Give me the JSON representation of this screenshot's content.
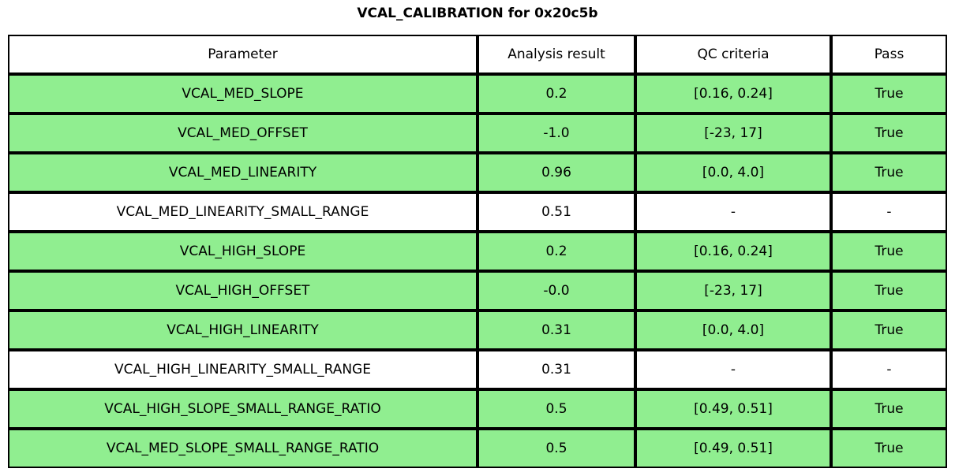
{
  "title": "VCAL_CALIBRATION for 0x20c5b",
  "colors": {
    "pass_row_green": "#90EE90",
    "no_qc_row_white": "#FFFFFF",
    "border_black": "#000000",
    "text_black": "#000000"
  },
  "chart_data": {
    "type": "table",
    "title": "VCAL_CALIBRATION for 0x20c5b",
    "columns": [
      "Parameter",
      "Analysis result",
      "QC criteria",
      "Pass"
    ],
    "rows": [
      {
        "parameter": "VCAL_MED_SLOPE",
        "result": "0.2",
        "qc": "[0.16, 0.24]",
        "pass": "True",
        "highlight": true
      },
      {
        "parameter": "VCAL_MED_OFFSET",
        "result": "-1.0",
        "qc": "[-23, 17]",
        "pass": "True",
        "highlight": true
      },
      {
        "parameter": "VCAL_MED_LINEARITY",
        "result": "0.96",
        "qc": "[0.0, 4.0]",
        "pass": "True",
        "highlight": true
      },
      {
        "parameter": "VCAL_MED_LINEARITY_SMALL_RANGE",
        "result": "0.51",
        "qc": "-",
        "pass": "-",
        "highlight": false
      },
      {
        "parameter": "VCAL_HIGH_SLOPE",
        "result": "0.2",
        "qc": "[0.16, 0.24]",
        "pass": "True",
        "highlight": true
      },
      {
        "parameter": "VCAL_HIGH_OFFSET",
        "result": "-0.0",
        "qc": "[-23, 17]",
        "pass": "True",
        "highlight": true
      },
      {
        "parameter": "VCAL_HIGH_LINEARITY",
        "result": "0.31",
        "qc": "[0.0, 4.0]",
        "pass": "True",
        "highlight": true
      },
      {
        "parameter": "VCAL_HIGH_LINEARITY_SMALL_RANGE",
        "result": "0.31",
        "qc": "-",
        "pass": "-",
        "highlight": false
      },
      {
        "parameter": "VCAL_HIGH_SLOPE_SMALL_RANGE_RATIO",
        "result": "0.5",
        "qc": "[0.49, 0.51]",
        "pass": "True",
        "highlight": true
      },
      {
        "parameter": "VCAL_MED_SLOPE_SMALL_RANGE_RATIO",
        "result": "0.5",
        "qc": "[0.49, 0.51]",
        "pass": "True",
        "highlight": true
      }
    ]
  }
}
